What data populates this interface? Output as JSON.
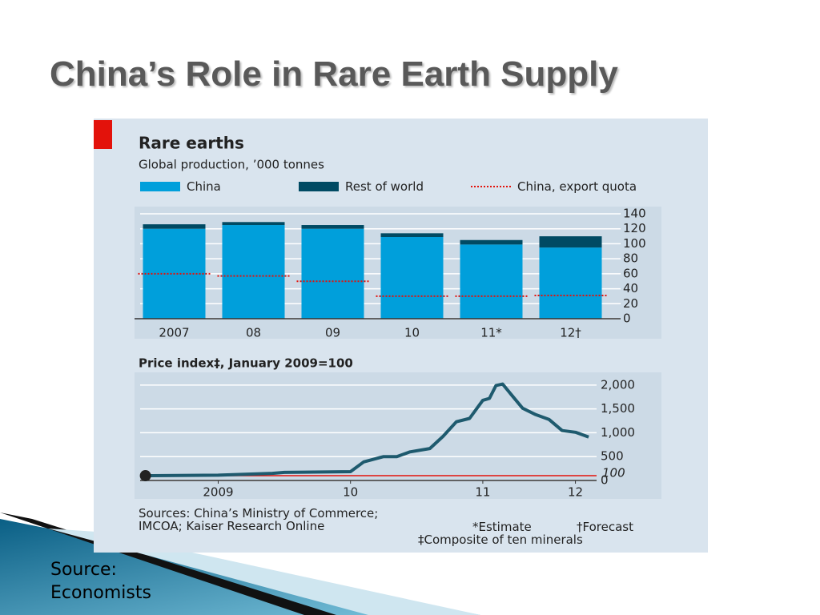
{
  "title": "China’s Role in Rare Earth Supply",
  "source_note": "Source: Economists",
  "figure": {
    "sources": "Sources: China’s Ministry of Commerce; IMCOA; Kaiser Research Online",
    "notes": [
      "*Estimate",
      "†Forecast",
      "‡Composite of ten minerals"
    ]
  },
  "chart_data": [
    {
      "type": "bar",
      "title": "Rare earths",
      "subtitle": "Global production, ’000 tonnes",
      "categories": [
        "2007",
        "08",
        "09",
        "10",
        "11*",
        "12†"
      ],
      "series": [
        {
          "name": "China",
          "color": "#009fdb",
          "mark": "bar",
          "values": [
            120,
            125,
            120,
            109,
            99,
            95
          ]
        },
        {
          "name": "Rest of world",
          "color": "#004a63",
          "mark": "bar",
          "values": [
            6,
            4,
            5,
            5,
            6,
            15
          ]
        },
        {
          "name": "China, export quota",
          "color": "#e3120b",
          "mark": "dash",
          "values": [
            60,
            57,
            50,
            30,
            30,
            31
          ]
        }
      ],
      "ylim": [
        0,
        140
      ],
      "yticks": [
        0,
        20,
        40,
        60,
        80,
        100,
        120,
        140
      ],
      "grid": true
    },
    {
      "type": "line",
      "title": "Price index‡, January 2009=100",
      "x": [
        2008.95,
        2009.0,
        2009.5,
        2009.91,
        2010.0,
        2010.5,
        2010.6,
        2010.75,
        2010.85,
        2010.95,
        2011.1,
        2011.2,
        2011.3,
        2011.4,
        2011.5,
        2011.55,
        2011.6,
        2011.65,
        2011.7,
        2011.8,
        2011.9,
        2012.0,
        2012.1,
        2012.2,
        2012.3
      ],
      "series": [
        {
          "name": "Price index",
          "color": "#1e5a6e",
          "values": [
            100,
            100,
            110,
            150,
            170,
            185,
            390,
            500,
            500,
            600,
            670,
            925,
            1230,
            1300,
            1680,
            1720,
            1990,
            2020,
            1850,
            1515,
            1380,
            1280,
            1045,
            1010,
            910
          ]
        }
      ],
      "start_marker": true,
      "reference_line": 100,
      "reference_color": "#e3120b",
      "xlim": [
        2008.91,
        2012.36
      ],
      "xticks": [
        {
          "value": 2009.5,
          "label": "2009"
        },
        {
          "value": 2010.5,
          "label": "10"
        },
        {
          "value": 2011.5,
          "label": "11"
        },
        {
          "value": 2012.2,
          "label": "12"
        }
      ],
      "ylim": [
        0,
        2400
      ],
      "yticks": [
        0,
        500,
        {
          "value": 1000,
          "label": "1,000"
        },
        {
          "value": 1500,
          "label": "1,500"
        },
        {
          "value": 2000,
          "label": "2,000"
        }
      ],
      "grid": true
    }
  ]
}
